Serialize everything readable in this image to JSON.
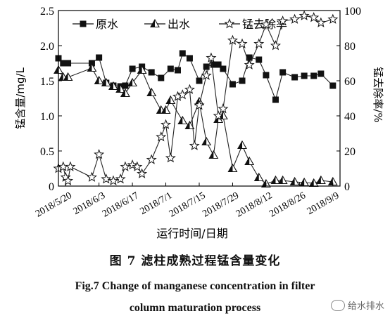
{
  "chart_data": {
    "type": "line",
    "legend": {
      "position": "top",
      "entries": [
        "原水",
        "出水",
        "锰去除率"
      ]
    },
    "ylabel_left": "锰含量/mg/L",
    "ylabel_right": "锰去除率/%",
    "xlabel": "运行时间/日期",
    "ylim_left": [
      0,
      2.5
    ],
    "ylim_right": [
      0,
      100
    ],
    "yticks_left": [
      "0",
      "0.5",
      "1.0",
      "1.5",
      "2.0",
      "2.5"
    ],
    "yticks_right": [
      "0",
      "20",
      "40",
      "60",
      "80",
      "100"
    ],
    "xtick_labels": [
      "2018/5/20",
      "2018/6/3",
      "2018/6/17",
      "2018/7/1",
      "2018/7/15",
      "2018/7/29",
      "2018/8/12",
      "2018/8/26",
      "2018/9/9"
    ],
    "xlim": [
      "2018/5/17",
      "2018/9/12"
    ],
    "series": [
      {
        "name": "原水",
        "axis": "left",
        "marker": "square",
        "points": [
          [
            "2018/5/17",
            1.82
          ],
          [
            "2018/5/19",
            1.75
          ],
          [
            "2018/5/21",
            1.75
          ],
          [
            "2018/5/31",
            1.75
          ],
          [
            "2018/6/3",
            1.83
          ],
          [
            "2018/6/6",
            1.47
          ],
          [
            "2018/6/9",
            1.43
          ],
          [
            "2018/6/12",
            1.42
          ],
          [
            "2018/6/14",
            1.43
          ],
          [
            "2018/6/17",
            1.67
          ],
          [
            "2018/6/21",
            1.7
          ],
          [
            "2018/6/25",
            1.62
          ],
          [
            "2018/6/29",
            1.54
          ],
          [
            "2018/7/3",
            1.67
          ],
          [
            "2018/7/6",
            1.65
          ],
          [
            "2018/7/8",
            1.89
          ],
          [
            "2018/7/11",
            1.82
          ],
          [
            "2018/7/15",
            1.5
          ],
          [
            "2018/7/18",
            1.7
          ],
          [
            "2018/7/21",
            1.73
          ],
          [
            "2018/7/23",
            1.73
          ],
          [
            "2018/7/25",
            1.67
          ],
          [
            "2018/7/29",
            1.45
          ],
          [
            "2018/8/2",
            1.5
          ],
          [
            "2018/8/5",
            1.83
          ],
          [
            "2018/8/9",
            1.8
          ],
          [
            "2018/8/12",
            1.58
          ],
          [
            "2018/8/16",
            1.23
          ],
          [
            "2018/8/19",
            1.62
          ],
          [
            "2018/8/24",
            1.55
          ],
          [
            "2018/8/28",
            1.57
          ],
          [
            "2018/9/1",
            1.57
          ],
          [
            "2018/9/4",
            1.6
          ],
          [
            "2018/9/9",
            1.43
          ]
        ]
      },
      {
        "name": "出水",
        "axis": "left",
        "marker": "triangle",
        "points": [
          [
            "2018/5/17",
            1.65
          ],
          [
            "2018/5/19",
            1.55
          ],
          [
            "2018/5/21",
            1.55
          ],
          [
            "2018/5/31",
            1.68
          ],
          [
            "2018/6/3",
            1.5
          ],
          [
            "2018/6/6",
            1.47
          ],
          [
            "2018/6/9",
            1.42
          ],
          [
            "2018/6/12",
            1.38
          ],
          [
            "2018/6/14",
            1.32
          ],
          [
            "2018/6/17",
            1.47
          ],
          [
            "2018/6/21",
            1.65
          ],
          [
            "2018/6/25",
            1.33
          ],
          [
            "2018/6/29",
            1.08
          ],
          [
            "2018/7/1",
            1.08
          ],
          [
            "2018/7/3",
            1.22
          ],
          [
            "2018/7/8",
            0.93
          ],
          [
            "2018/7/11",
            0.86
          ],
          [
            "2018/7/15",
            1.2
          ],
          [
            "2018/7/18",
            0.63
          ],
          [
            "2018/7/21",
            0.44
          ],
          [
            "2018/7/23",
            0.95
          ],
          [
            "2018/7/25",
            1.0
          ],
          [
            "2018/7/29",
            0.25
          ],
          [
            "2018/8/2",
            0.58
          ],
          [
            "2018/8/5",
            0.35
          ],
          [
            "2018/8/9",
            0.12
          ],
          [
            "2018/8/12",
            0.03
          ],
          [
            "2018/8/16",
            0.08
          ],
          [
            "2018/8/19",
            0.08
          ],
          [
            "2018/8/24",
            0.06
          ],
          [
            "2018/8/28",
            0.05
          ],
          [
            "2018/9/1",
            0.04
          ],
          [
            "2018/9/4",
            0.08
          ],
          [
            "2018/9/9",
            0.06
          ]
        ]
      },
      {
        "name": "锰去除率",
        "axis": "right",
        "marker": "star",
        "points": [
          [
            "2018/5/17",
            10
          ],
          [
            "2018/5/19",
            11
          ],
          [
            "2018/5/20",
            5
          ],
          [
            "2018/5/21",
            3
          ],
          [
            "2018/5/22",
            11
          ],
          [
            "2018/5/31",
            5
          ],
          [
            "2018/6/3",
            18
          ],
          [
            "2018/6/6",
            4
          ],
          [
            "2018/6/9",
            3
          ],
          [
            "2018/6/12",
            4
          ],
          [
            "2018/6/14",
            11
          ],
          [
            "2018/6/17",
            12
          ],
          [
            "2018/6/19",
            11
          ],
          [
            "2018/6/21",
            7
          ],
          [
            "2018/6/25",
            15
          ],
          [
            "2018/6/29",
            28
          ],
          [
            "2018/7/1",
            35
          ],
          [
            "2018/7/3",
            16
          ],
          [
            "2018/7/6",
            51
          ],
          [
            "2018/7/8",
            52
          ],
          [
            "2018/7/11",
            55
          ],
          [
            "2018/7/13",
            23
          ],
          [
            "2018/7/15",
            46
          ],
          [
            "2018/7/18",
            63
          ],
          [
            "2018/7/20",
            73
          ],
          [
            "2018/7/23",
            40
          ],
          [
            "2018/7/25",
            44
          ],
          [
            "2018/7/29",
            83
          ],
          [
            "2018/8/2",
            81
          ],
          [
            "2018/8/5",
            69
          ],
          [
            "2018/8/9",
            81
          ],
          [
            "2018/8/12",
            92
          ],
          [
            "2018/8/16",
            80
          ],
          [
            "2018/8/19",
            94
          ],
          [
            "2018/8/24",
            95
          ],
          [
            "2018/8/28",
            97
          ],
          [
            "2018/9/1",
            96
          ],
          [
            "2018/9/4",
            93
          ],
          [
            "2018/9/9",
            95
          ]
        ]
      }
    ]
  },
  "caption": {
    "cn": "图 7    滤柱成熟过程锰含量变化",
    "en_line1": "Fig.7    Change of manganese concentration in filter",
    "en_line2": "column maturation process"
  },
  "watermark": "给水排水"
}
